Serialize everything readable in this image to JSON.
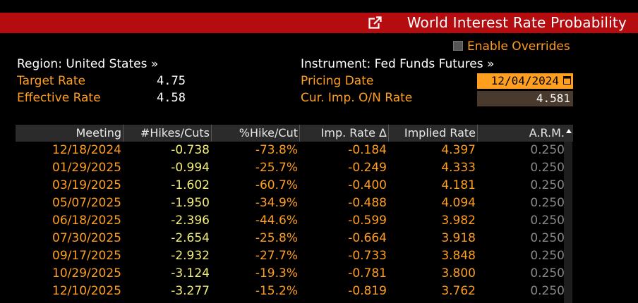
{
  "window": {
    "title": "World Interest Rate Probability",
    "icon": "external-link-icon"
  },
  "overrides": {
    "label": "Enable Overrides",
    "checked": false
  },
  "left_panel": {
    "region_label": "Region: United States »",
    "target_rate_label": "Target Rate",
    "target_rate_value": "4.75",
    "effective_rate_label": "Effective Rate",
    "effective_rate_value": "4.58"
  },
  "right_panel": {
    "instrument_label": "Instrument: Fed Funds Futures »",
    "pricing_date_label": "Pricing Date",
    "pricing_date_value": "12/04/2024",
    "cur_imp_label": "Cur. Imp. O/N Rate",
    "cur_imp_value": "4.581"
  },
  "colors": {
    "title_bar": "#b50c10",
    "accent_orange": "#ff9e1f",
    "hikes_yellow": "#f2ee7a",
    "arm_gray": "#888888",
    "header_bg": "#2b2b2b"
  },
  "table": {
    "headers": [
      "Meeting",
      "#Hikes/Cuts",
      "%Hike/Cut",
      "Imp. Rate Δ",
      "Implied Rate",
      "A.R.M."
    ],
    "rows": [
      [
        "12/18/2024",
        "-0.738",
        "-73.8%",
        "-0.184",
        "4.397",
        "0.250"
      ],
      [
        "01/29/2025",
        "-0.994",
        "-25.7%",
        "-0.249",
        "4.333",
        "0.250"
      ],
      [
        "03/19/2025",
        "-1.602",
        "-60.7%",
        "-0.400",
        "4.181",
        "0.250"
      ],
      [
        "05/07/2025",
        "-1.950",
        "-34.9%",
        "-0.488",
        "4.094",
        "0.250"
      ],
      [
        "06/18/2025",
        "-2.396",
        "-44.6%",
        "-0.599",
        "3.982",
        "0.250"
      ],
      [
        "07/30/2025",
        "-2.654",
        "-25.8%",
        "-0.664",
        "3.918",
        "0.250"
      ],
      [
        "09/17/2025",
        "-2.932",
        "-27.7%",
        "-0.733",
        "3.848",
        "0.250"
      ],
      [
        "10/29/2025",
        "-3.124",
        "-19.3%",
        "-0.781",
        "3.800",
        "0.250"
      ],
      [
        "12/10/2025",
        "-3.277",
        "-15.2%",
        "-0.819",
        "3.762",
        "0.250"
      ]
    ]
  }
}
